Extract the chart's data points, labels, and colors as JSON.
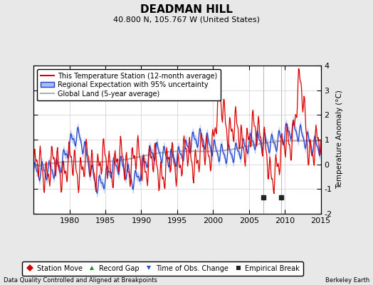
{
  "title": "DEADMAN HILL",
  "subtitle": "40.800 N, 105.767 W (United States)",
  "ylabel": "Temperature Anomaly (°C)",
  "xlabel_left": "Data Quality Controlled and Aligned at Breakpoints",
  "xlabel_right": "Berkeley Earth",
  "xlim": [
    1975,
    2015
  ],
  "ylim": [
    -2,
    4
  ],
  "yticks": [
    -2,
    -1,
    0,
    1,
    2,
    3,
    4
  ],
  "xticks": [
    1980,
    1985,
    1990,
    1995,
    2000,
    2005,
    2010,
    2015
  ],
  "bg_color": "#e8e8e8",
  "plot_bg_color": "#ffffff",
  "grid_color": "#cccccc",
  "empirical_breaks": [
    2007.0,
    2009.5
  ],
  "vert_lines": [
    2007.0,
    2009.5
  ],
  "station_move_color": "#cc0000",
  "record_gap_color": "#228822",
  "obs_change_color": "#2255cc",
  "empirical_break_color": "#222222",
  "red_line_color": "#dd0000",
  "blue_line_color": "#2244cc",
  "blue_fill_color": "#aabbee",
  "gray_line_color": "#b0b0b0",
  "title_fontsize": 11,
  "subtitle_fontsize": 8,
  "tick_fontsize": 8,
  "legend_fontsize": 7,
  "ylabel_fontsize": 7.5
}
